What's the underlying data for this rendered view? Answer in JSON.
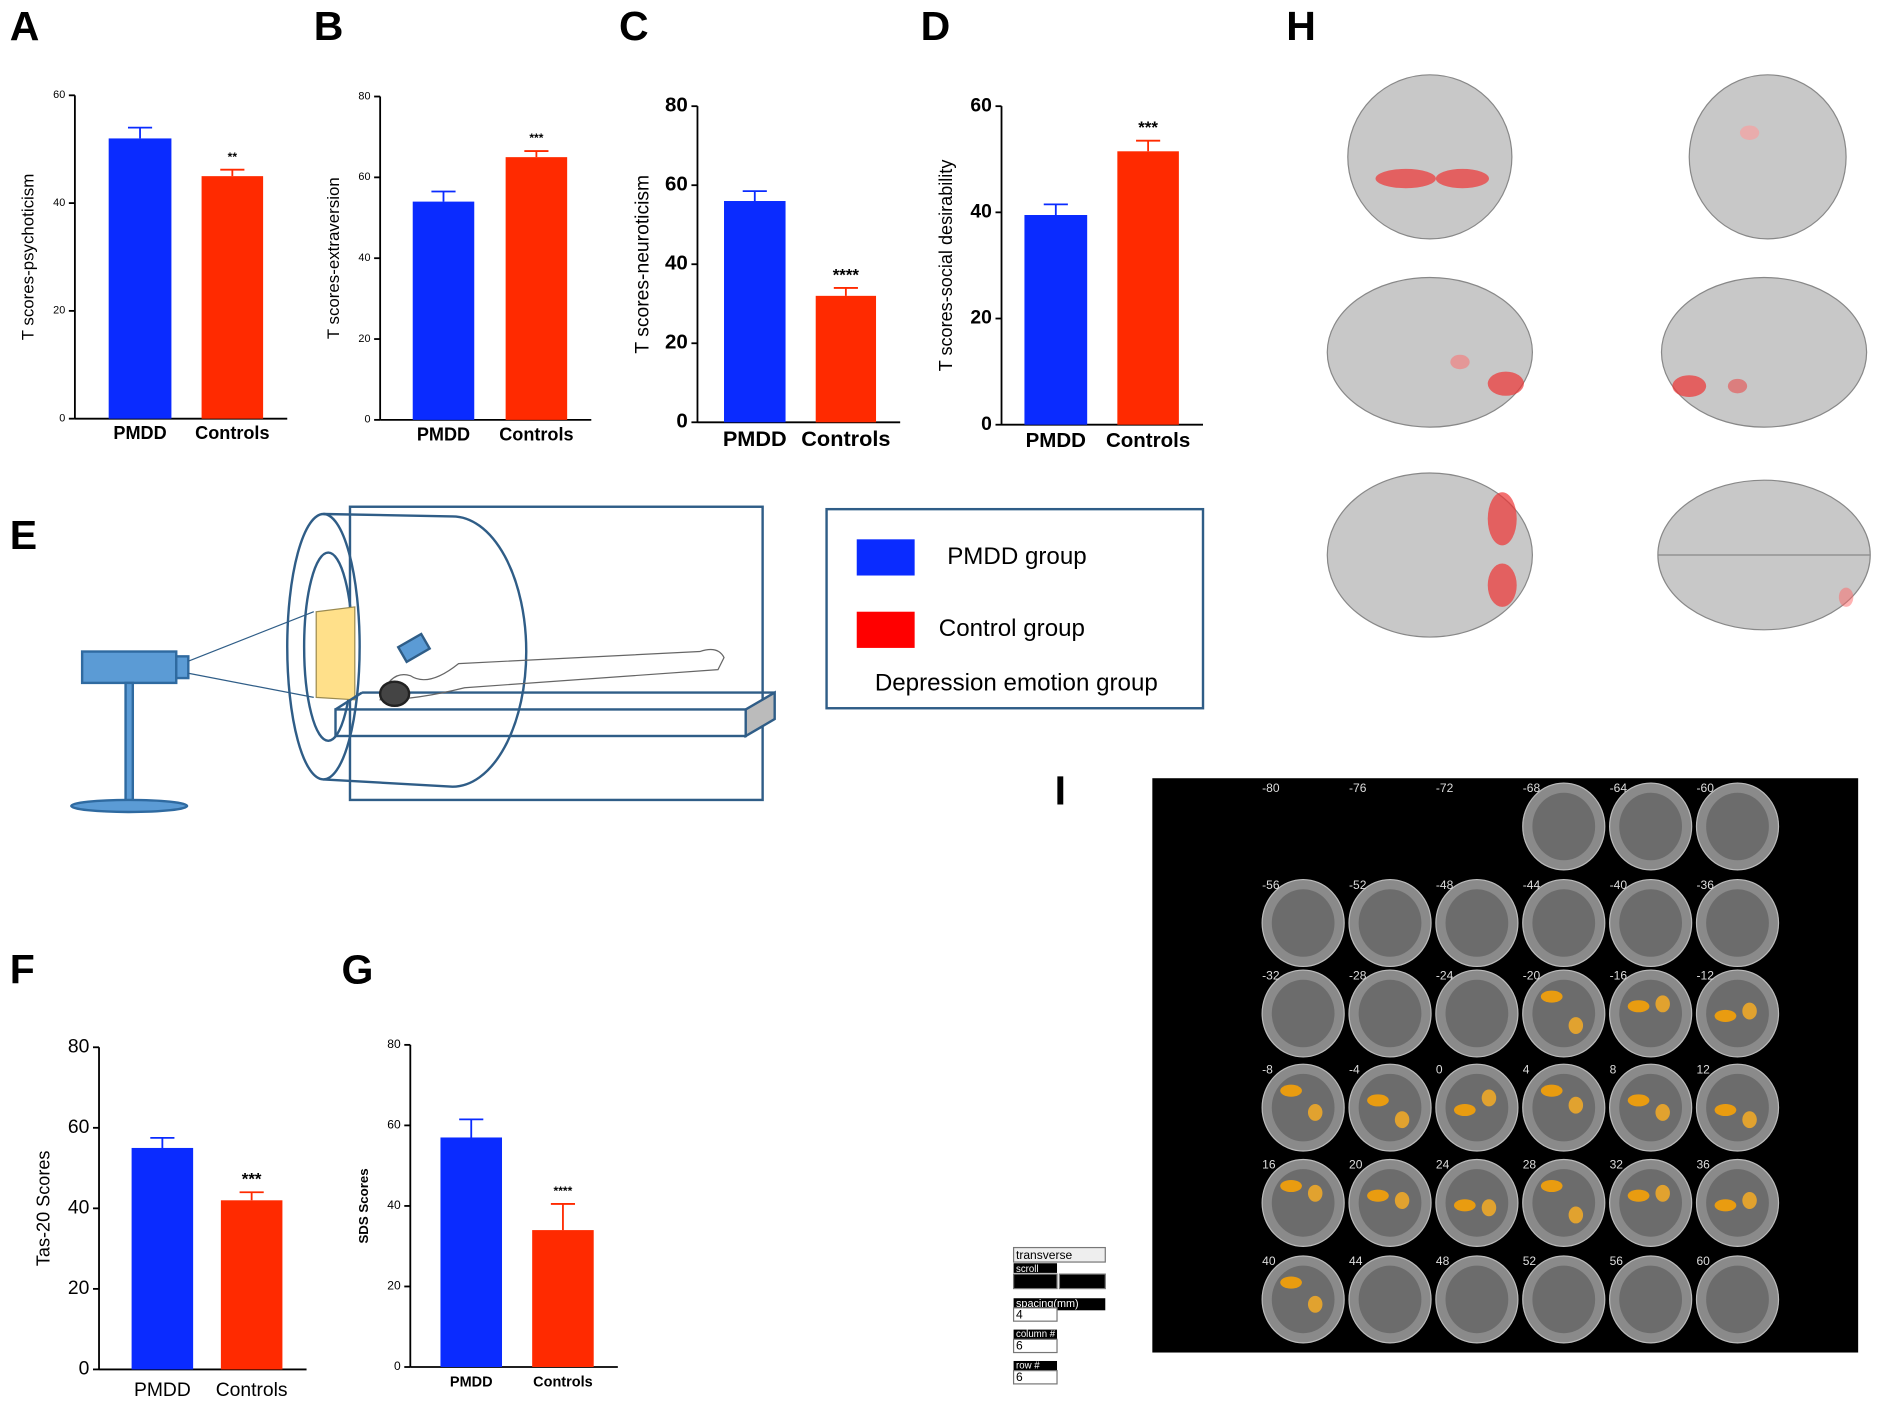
{
  "panels": [
    "A",
    "B",
    "C",
    "D",
    "E",
    "F",
    "G",
    "H",
    "I"
  ],
  "chart_data": [
    {
      "type": "bar",
      "ylabel": "T scores-psychoticism",
      "categories": [
        "PMDD",
        "Controls"
      ],
      "values": [
        52,
        45
      ],
      "errors": [
        2,
        1.2
      ],
      "colors": [
        "#0a2bff",
        "#ff2a00"
      ],
      "annotation": "**",
      "ylim": [
        0,
        60
      ],
      "yticks": [
        0,
        20,
        40,
        60
      ]
    },
    {
      "type": "bar",
      "ylabel": "T scores-extraversion",
      "categories": [
        "PMDD",
        "Controls"
      ],
      "values": [
        54,
        65
      ],
      "errors": [
        2.5,
        1.5
      ],
      "colors": [
        "#0a2bff",
        "#ff2a00"
      ],
      "annotation": "***",
      "ylim": [
        0,
        80
      ],
      "yticks": [
        0,
        20,
        40,
        60,
        80
      ]
    },
    {
      "type": "bar",
      "ylabel": "T scores-neuroticism",
      "categories": [
        "PMDD",
        "Controls"
      ],
      "values": [
        56,
        32
      ],
      "errors": [
        2.5,
        2
      ],
      "colors": [
        "#0a2bff",
        "#ff2a00"
      ],
      "annotation": "****",
      "ylim": [
        0,
        80
      ],
      "yticks": [
        0,
        20,
        40,
        60,
        80
      ]
    },
    {
      "type": "bar",
      "ylabel": "T scores-social desirability",
      "categories": [
        "PMDD",
        "Controls"
      ],
      "values": [
        39.5,
        51.5
      ],
      "errors": [
        2,
        2
      ],
      "colors": [
        "#0a2bff",
        "#ff2a00"
      ],
      "annotation": "***",
      "ylim": [
        0,
        60
      ],
      "yticks": [
        0,
        20,
        40,
        60
      ]
    },
    {
      "type": "bar",
      "ylabel": "Tas-20 Scores",
      "categories": [
        "PMDD",
        "Controls"
      ],
      "values": [
        55,
        42
      ],
      "errors": [
        2.5,
        2
      ],
      "colors": [
        "#0a2bff",
        "#ff2a00"
      ],
      "annotation": "***",
      "ylim": [
        0,
        80
      ],
      "yticks": [
        0,
        20,
        40,
        60,
        80
      ]
    },
    {
      "type": "bar",
      "ylabel": "SDS Scores",
      "categories": [
        "PMDD",
        "Controls"
      ],
      "values": [
        57,
        34
      ],
      "errors": [
        4.5,
        6.5
      ],
      "colors": [
        "#0a2bff",
        "#ff2a00"
      ],
      "annotation": "****",
      "ylim": [
        0,
        80
      ],
      "yticks": [
        0,
        20,
        40,
        60,
        80
      ]
    }
  ],
  "legend": [
    "PMDD group",
    "Control group",
    "Depression emotion group"
  ],
  "slices": [
    -80,
    -76,
    -72,
    -68,
    -64,
    -60,
    -56,
    -52,
    -48,
    -44,
    -40,
    -36,
    -32,
    -28,
    -24,
    -20,
    -16,
    -12,
    -8,
    -4,
    0,
    4,
    8,
    12,
    16,
    20,
    24,
    28,
    32,
    36,
    40,
    44,
    48,
    52,
    56,
    60
  ],
  "controls": {
    "view": "transverse",
    "scroll": "scroll",
    "spacing": "spacing(mm)",
    "spacing_value": "4",
    "column": "column #",
    "column_value": "6",
    "row": "row #",
    "row_value": "6"
  }
}
